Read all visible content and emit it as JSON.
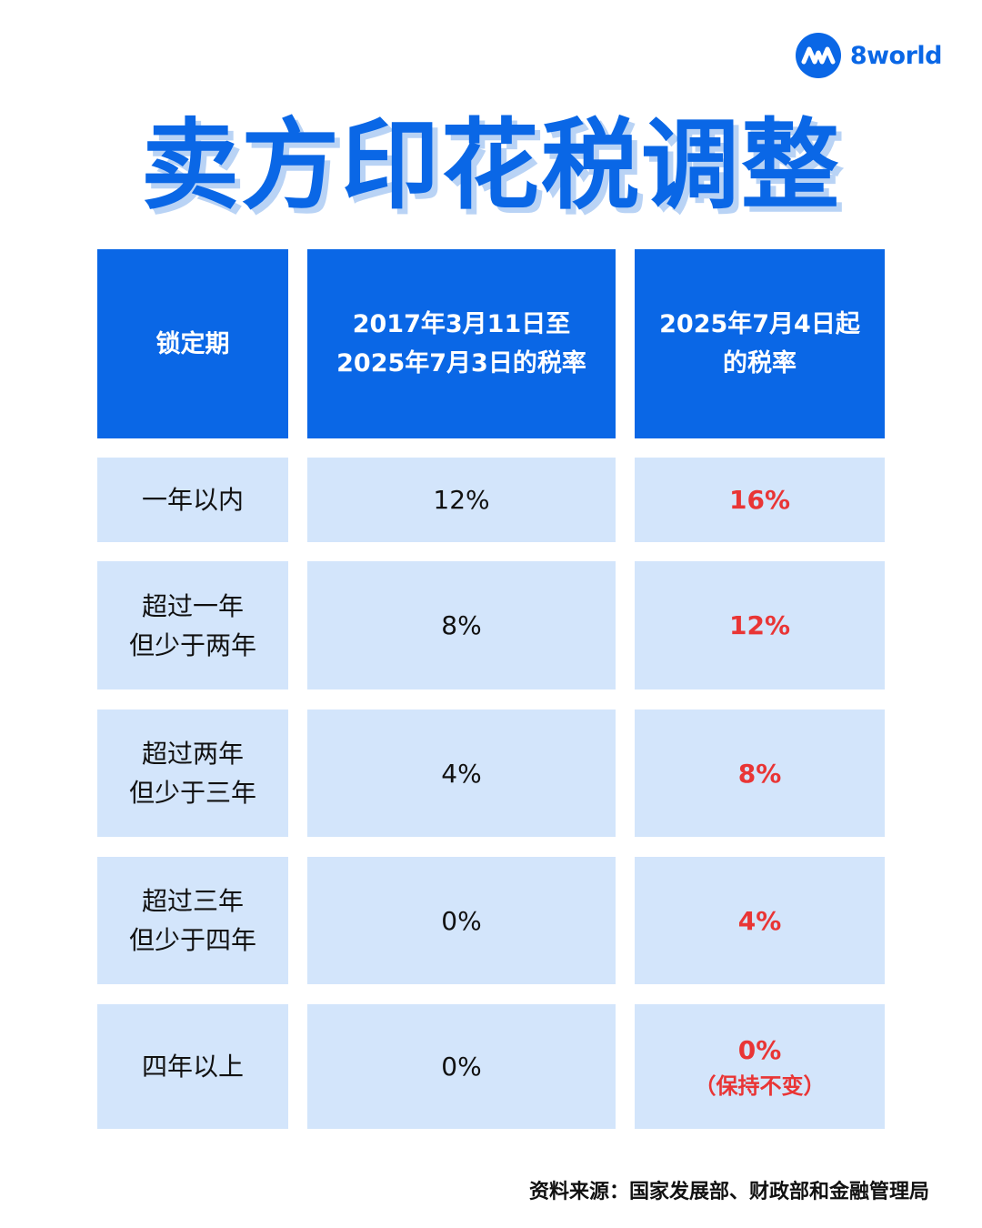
{
  "brand": {
    "name": "8world",
    "icon": "8world-logo-icon",
    "color": "#0a67e6"
  },
  "title": "卖方印花税调整",
  "colors": {
    "header_bg": "#0a67e6",
    "cell_bg": "#d3e5fb",
    "highlight": "#e93535",
    "title_shadow": "#b9d3f5"
  },
  "table": {
    "headers": [
      [
        "锁定期"
      ],
      [
        "2017年3月11日至",
        "2025年7月3日的税率"
      ],
      [
        "2025年7月4日起",
        "的税率"
      ]
    ],
    "rows": [
      {
        "period": [
          "一年以内"
        ],
        "old_rate": "12%",
        "new_rate": "16%",
        "note": ""
      },
      {
        "period": [
          "超过一年",
          "但少于两年"
        ],
        "old_rate": "8%",
        "new_rate": "12%",
        "note": ""
      },
      {
        "period": [
          "超过两年",
          "但少于三年"
        ],
        "old_rate": "4%",
        "new_rate": "8%",
        "note": ""
      },
      {
        "period": [
          "超过三年",
          "但少于四年"
        ],
        "old_rate": "0%",
        "new_rate": "4%",
        "note": ""
      },
      {
        "period": [
          "四年以上"
        ],
        "old_rate": "0%",
        "new_rate": "0%",
        "note": "（保持不变）"
      }
    ]
  },
  "source": "资料来源：国家发展部、财政部和金融管理局"
}
